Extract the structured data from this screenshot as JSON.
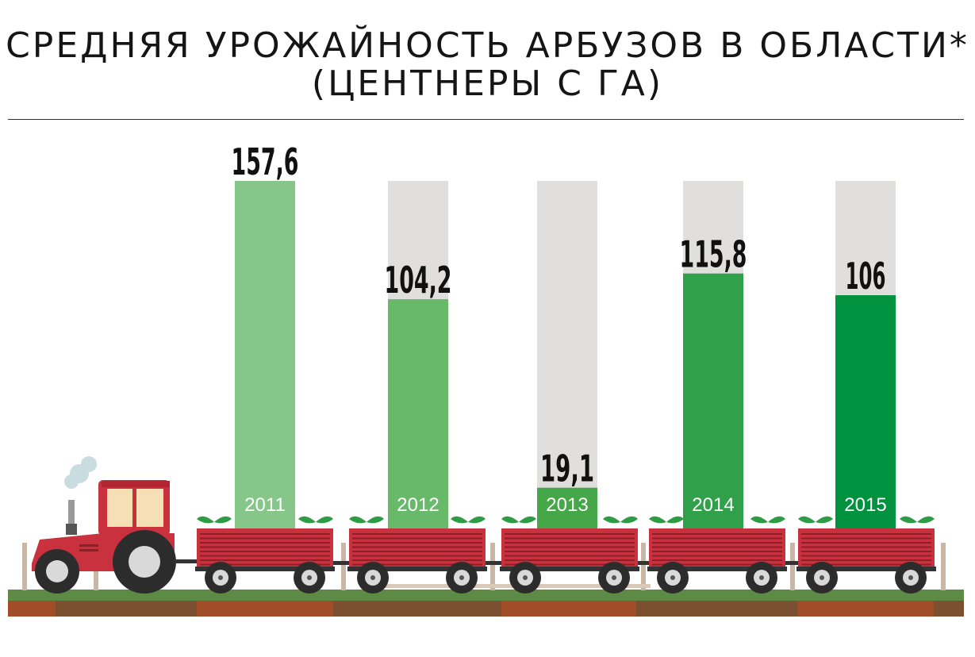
{
  "title_line1": "СРЕДНЯЯ УРОЖАЙНОСТЬ АРБУЗОВ В ОБЛАСТИ*",
  "title_line2": "(ЦЕНТНЕРЫ С ГА)",
  "chart_data": {
    "type": "bar",
    "categories": [
      "2011",
      "2012",
      "2013",
      "2014",
      "2015"
    ],
    "values": [
      157.6,
      104.2,
      19.1,
      115.8,
      106
    ],
    "value_labels": [
      "157,6",
      "104,2",
      "19,1",
      "115,8",
      "106"
    ],
    "ylim": [
      0,
      157.6
    ],
    "grid": false,
    "legend": "none",
    "colors": {
      "bars": [
        "#86c689",
        "#68b96a",
        "#45a748",
        "#31a04a",
        "#00923f"
      ],
      "track": "#e0dfde",
      "wagon": "#c9313e",
      "tractor": "#c9313e",
      "ground": "#5d8a45"
    }
  }
}
